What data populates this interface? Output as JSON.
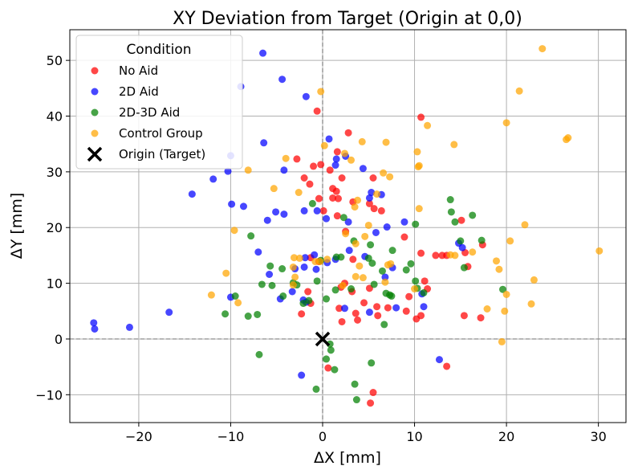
{
  "chart_data": {
    "type": "scatter",
    "title": "XY Deviation from Target (Origin at 0,0)",
    "xlabel": "ΔX [mm]",
    "ylabel": "ΔY [mm]",
    "xlim": [
      -27.5,
      33
    ],
    "ylim": [
      -15,
      55.5
    ],
    "xticks": [
      -20,
      -10,
      0,
      10,
      20,
      30
    ],
    "yticks": [
      -10,
      0,
      10,
      20,
      30,
      40,
      50
    ],
    "xtick_labels": [
      "−20",
      "−10",
      "0",
      "10",
      "20",
      "30"
    ],
    "ytick_labels": [
      "−10",
      "0",
      "10",
      "20",
      "30",
      "40",
      "50"
    ],
    "grid": true,
    "legend": {
      "title": "Condition",
      "placement": "top-left"
    },
    "colors": {
      "No Aid": "#ff0000",
      "2D Aid": "#0000ff",
      "2D-3D Aid": "#008000",
      "Control Group": "#ffa500",
      "Origin (Target)": "#000000"
    },
    "series": [
      {
        "name": "No Aid",
        "points": [
          [
            -0.6,
            40.9
          ],
          [
            10.7,
            39.8
          ],
          [
            2.8,
            37
          ],
          [
            1.6,
            33.6
          ],
          [
            -2.8,
            32.3
          ],
          [
            -1,
            31
          ],
          [
            -0.2,
            31.3
          ],
          [
            -2,
            28.9
          ],
          [
            -1.4,
            27.8
          ],
          [
            1.1,
            27
          ],
          [
            2.1,
            28.9
          ],
          [
            5.5,
            28.9
          ],
          [
            1.5,
            26.5
          ],
          [
            1.7,
            25.2
          ],
          [
            -0.4,
            25.2
          ],
          [
            1.1,
            25.3
          ],
          [
            3.3,
            24.6
          ],
          [
            5.1,
            24.3
          ],
          [
            5.6,
            23.4
          ],
          [
            0.1,
            23
          ],
          [
            1.6,
            22.1
          ],
          [
            2.5,
            19.3
          ],
          [
            8.9,
            18.3
          ],
          [
            -1.3,
            14.6
          ],
          [
            13.5,
            15
          ],
          [
            15.5,
            15.5
          ],
          [
            17.4,
            16.9
          ],
          [
            12.3,
            15
          ],
          [
            10.7,
            15.4
          ],
          [
            3.3,
            14.3
          ],
          [
            11.1,
            10.4
          ],
          [
            15.8,
            13
          ],
          [
            9.4,
            7.6
          ],
          [
            11.4,
            9
          ],
          [
            13,
            15
          ],
          [
            2.4,
            10
          ],
          [
            2,
            9.3
          ],
          [
            3.2,
            8.5
          ],
          [
            5.1,
            9.1
          ],
          [
            7.1,
            5.6
          ],
          [
            6,
            4.2
          ],
          [
            3.6,
            4.6
          ],
          [
            4.5,
            6.5
          ],
          [
            5.9,
            5.8
          ],
          [
            1.8,
            5.5
          ],
          [
            3.8,
            3.4
          ],
          [
            2.1,
            3.1
          ],
          [
            9.1,
            5
          ],
          [
            10.2,
            3.6
          ],
          [
            10.7,
            4.2
          ],
          [
            15.4,
            4.2
          ],
          [
            17.2,
            3.8
          ],
          [
            -1.6,
            8.5
          ],
          [
            -1.3,
            6.4
          ],
          [
            -2.3,
            4.5
          ],
          [
            0.6,
            -5.2
          ],
          [
            5.5,
            -9.6
          ],
          [
            5.2,
            -11.5
          ],
          [
            13.5,
            -4.9
          ],
          [
            -0.4,
            13.9
          ],
          [
            0.8,
            30.3
          ],
          [
            15.1,
            21.3
          ],
          [
            6.4,
            23
          ]
        ]
      },
      {
        "name": "2D Aid",
        "points": [
          [
            -6.5,
            51.3
          ],
          [
            -8.9,
            45.3
          ],
          [
            -4.4,
            46.6
          ],
          [
            -1.8,
            43.5
          ],
          [
            -6.4,
            35.2
          ],
          [
            -10,
            32.9
          ],
          [
            -10.3,
            30.1
          ],
          [
            -11.9,
            28.7
          ],
          [
            -4.2,
            30.3
          ],
          [
            0.7,
            35.9
          ],
          [
            1.5,
            32.3
          ],
          [
            2.5,
            32.8
          ],
          [
            4.4,
            30.6
          ],
          [
            1.4,
            31.2
          ],
          [
            5.1,
            25.3
          ],
          [
            6.4,
            25.9
          ],
          [
            -14.2,
            26
          ],
          [
            -9.9,
            24.2
          ],
          [
            -8.6,
            23.8
          ],
          [
            -6,
            21.3
          ],
          [
            -5.1,
            22.8
          ],
          [
            -4.2,
            22.4
          ],
          [
            -2,
            23
          ],
          [
            -0.6,
            23
          ],
          [
            0.4,
            21.6
          ],
          [
            2.8,
            21
          ],
          [
            7,
            20.1
          ],
          [
            5.8,
            19.1
          ],
          [
            8.9,
            21
          ],
          [
            14.8,
            17.2
          ],
          [
            15.2,
            16.4
          ],
          [
            -7,
            15.6
          ],
          [
            -0.9,
            15.1
          ],
          [
            -1.9,
            14.6
          ],
          [
            0.5,
            13.7
          ],
          [
            1.4,
            14.3
          ],
          [
            2.9,
            15.9
          ],
          [
            4.6,
            14.8
          ],
          [
            7.6,
            12.8
          ],
          [
            -2,
            12.9
          ],
          [
            -0.7,
            12.5
          ],
          [
            -3,
            12.6
          ],
          [
            -5.8,
            11.6
          ],
          [
            -3.3,
            8.5
          ],
          [
            -4.6,
            7.2
          ],
          [
            -10,
            7.5
          ],
          [
            -2.1,
            7
          ],
          [
            -1.8,
            6.6
          ],
          [
            2.4,
            5.5
          ],
          [
            5.1,
            4.8
          ],
          [
            10.8,
            8.1
          ],
          [
            11,
            5.8
          ],
          [
            6.8,
            11.1
          ],
          [
            -16.7,
            4.8
          ],
          [
            -21,
            2.1
          ],
          [
            -24.9,
            2.9
          ],
          [
            -24.8,
            1.8
          ],
          [
            -2.3,
            -6.5
          ],
          [
            12.7,
            -3.7
          ],
          [
            8,
            5.6
          ],
          [
            5.3,
            26.3
          ]
        ]
      },
      {
        "name": "2D-3D Aid",
        "points": [
          [
            -1.1,
            24.3
          ],
          [
            2.3,
            21.8
          ],
          [
            13.9,
            25
          ],
          [
            10.1,
            20.6
          ],
          [
            14,
            22.8
          ],
          [
            16.3,
            22.2
          ],
          [
            -7.8,
            18.5
          ],
          [
            14.4,
            21
          ],
          [
            15,
            17.6
          ],
          [
            15.4,
            12.8
          ],
          [
            17.3,
            17.7
          ],
          [
            5,
            14.5
          ],
          [
            5.4,
            13.6
          ],
          [
            5.2,
            16.9
          ],
          [
            7.6,
            15.9
          ],
          [
            6.5,
            12.2
          ],
          [
            1.5,
            14.7
          ],
          [
            2,
            14.7
          ],
          [
            -5.7,
            13.1
          ],
          [
            -3.2,
            10.1
          ],
          [
            -4.4,
            12.6
          ],
          [
            -6.6,
            9.8
          ],
          [
            -5.5,
            9.6
          ],
          [
            -4.3,
            7.7
          ],
          [
            -2.8,
            9.7
          ],
          [
            -2.1,
            6.4
          ],
          [
            -0.6,
            10.4
          ],
          [
            0.4,
            7.2
          ],
          [
            1.4,
            8.8
          ],
          [
            3.1,
            9
          ],
          [
            5.6,
            9.8
          ],
          [
            6.9,
            8.2
          ],
          [
            7.5,
            7.7
          ],
          [
            9.6,
            13.5
          ],
          [
            9.1,
            12.4
          ],
          [
            10.3,
            9.1
          ],
          [
            10.1,
            10.4
          ],
          [
            11,
            8.3
          ],
          [
            19.6,
            8.9
          ],
          [
            -10.6,
            4.5
          ],
          [
            -8.1,
            4.1
          ],
          [
            -7.1,
            4.4
          ],
          [
            -9.5,
            7.7
          ],
          [
            -1.5,
            6.9
          ],
          [
            6.7,
            2.6
          ],
          [
            -6.9,
            -2.8
          ],
          [
            0.8,
            -0.9
          ],
          [
            0.9,
            -2
          ],
          [
            0.4,
            -3.6
          ],
          [
            1.3,
            -5.5
          ],
          [
            5.3,
            -4.3
          ],
          [
            3.5,
            -8.1
          ],
          [
            3.7,
            -10.9
          ],
          [
            -0.7,
            -9
          ],
          [
            7.3,
            7.9
          ],
          [
            -0.2,
            14.1
          ],
          [
            3.4,
            17.6
          ]
        ]
      },
      {
        "name": "Control Group",
        "points": [
          [
            23.9,
            52.1
          ],
          [
            21.4,
            44.5
          ],
          [
            -0.2,
            44.4
          ],
          [
            20,
            38.8
          ],
          [
            11.4,
            38.3
          ],
          [
            14.3,
            34.9
          ],
          [
            0.2,
            34.7
          ],
          [
            4.3,
            35.4
          ],
          [
            6.9,
            35.3
          ],
          [
            10.3,
            33.6
          ],
          [
            26.5,
            35.8
          ],
          [
            26.7,
            36.1
          ],
          [
            -4,
            32.4
          ],
          [
            2.4,
            33.3
          ],
          [
            3.1,
            32.1
          ],
          [
            10.5,
            31.1
          ],
          [
            10.4,
            30.9
          ],
          [
            6.6,
            29.8
          ],
          [
            7.3,
            29.1
          ],
          [
            -8.1,
            30.3
          ],
          [
            -5.3,
            27
          ],
          [
            -2.6,
            26.3
          ],
          [
            3.8,
            24.9
          ],
          [
            5.9,
            26
          ],
          [
            10.5,
            23.4
          ],
          [
            -9.6,
            19.5
          ],
          [
            3.5,
            23.7
          ],
          [
            5,
            20.4
          ],
          [
            4.6,
            18.4
          ],
          [
            2.5,
            18.9
          ],
          [
            3.6,
            17.1
          ],
          [
            20.4,
            17.6
          ],
          [
            22,
            20.5
          ],
          [
            -3.1,
            14.6
          ],
          [
            -3.2,
            12.9
          ],
          [
            -0.3,
            13.9
          ],
          [
            0.5,
            14.3
          ],
          [
            4,
            13.1
          ],
          [
            7.1,
            13.3
          ],
          [
            16.3,
            15.6
          ],
          [
            14.4,
            15
          ],
          [
            13.9,
            15.1
          ],
          [
            18.9,
            14
          ],
          [
            19.2,
            12.5
          ],
          [
            -3,
            11.1
          ],
          [
            -3.2,
            9.7
          ],
          [
            3.6,
            11.2
          ],
          [
            4.4,
            11
          ],
          [
            6.8,
            10.2
          ],
          [
            7.4,
            13.5
          ],
          [
            23,
            10.6
          ],
          [
            20,
            8
          ],
          [
            -12.1,
            7.9
          ],
          [
            -10.5,
            11.8
          ],
          [
            -9.2,
            6.5
          ],
          [
            17.9,
            5.4
          ],
          [
            22.7,
            6.3
          ],
          [
            19.8,
            5
          ],
          [
            30.1,
            15.8
          ],
          [
            19.5,
            -0.5
          ],
          [
            10,
            9
          ],
          [
            2.2,
            9.6
          ],
          [
            -0.8,
            13.9
          ],
          [
            -2.5,
            14.5
          ]
        ]
      },
      {
        "name": "Origin (Target)",
        "points": [
          [
            0,
            0
          ]
        ]
      }
    ]
  }
}
